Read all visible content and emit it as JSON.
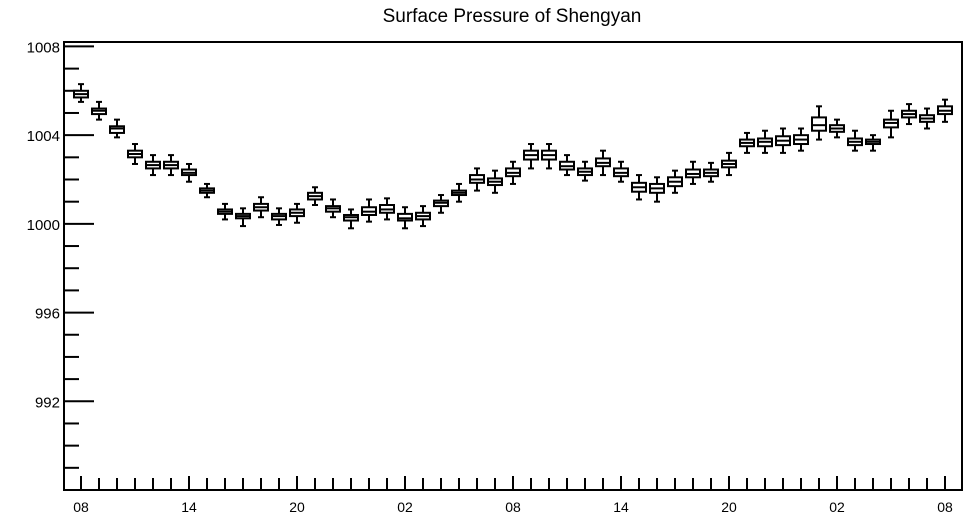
{
  "chart_data": {
    "type": "box",
    "title": "Surface Pressure of Shengyan",
    "xlabel": "",
    "ylabel": "",
    "ylim": [
      988,
      1008.2
    ],
    "y_tick_values": [
      992,
      996,
      1000,
      1004,
      1008
    ],
    "y_tick_labels": [
      "992",
      "996",
      "1000",
      "1004",
      "1008"
    ],
    "x_tick_labels": [
      "08",
      "14",
      "20",
      "02",
      "08",
      "14",
      "20",
      "02",
      "08"
    ],
    "x_tick_step": 6,
    "x_index_range": [
      0,
      48
    ],
    "grid": false,
    "boxes": [
      {
        "index": 0,
        "whisker_low": 1005.5,
        "q1": 1005.7,
        "median": 1005.85,
        "q3": 1006.0,
        "whisker_high": 1006.3
      },
      {
        "index": 1,
        "whisker_low": 1004.7,
        "q1": 1004.95,
        "median": 1005.1,
        "q3": 1005.2,
        "whisker_high": 1005.5
      },
      {
        "index": 2,
        "whisker_low": 1003.9,
        "q1": 1004.1,
        "median": 1004.3,
        "q3": 1004.4,
        "whisker_high": 1004.7
      },
      {
        "index": 3,
        "whisker_low": 1002.7,
        "q1": 1003.0,
        "median": 1003.15,
        "q3": 1003.3,
        "whisker_high": 1003.6
      },
      {
        "index": 4,
        "whisker_low": 1002.2,
        "q1": 1002.5,
        "median": 1002.65,
        "q3": 1002.8,
        "whisker_high": 1003.1
      },
      {
        "index": 5,
        "whisker_low": 1002.2,
        "q1": 1002.5,
        "median": 1002.65,
        "q3": 1002.8,
        "whisker_high": 1003.1
      },
      {
        "index": 6,
        "whisker_low": 1001.9,
        "q1": 1002.2,
        "median": 1002.3,
        "q3": 1002.45,
        "whisker_high": 1002.7
      },
      {
        "index": 7,
        "whisker_low": 1001.2,
        "q1": 1001.4,
        "median": 1001.5,
        "q3": 1001.6,
        "whisker_high": 1001.8
      },
      {
        "index": 8,
        "whisker_low": 1000.2,
        "q1": 1000.45,
        "median": 1000.55,
        "q3": 1000.65,
        "whisker_high": 1000.9
      },
      {
        "index": 9,
        "whisker_low": 999.9,
        "q1": 1000.25,
        "median": 1000.35,
        "q3": 1000.45,
        "whisker_high": 1000.7
      },
      {
        "index": 10,
        "whisker_low": 1000.3,
        "q1": 1000.6,
        "median": 1000.75,
        "q3": 1000.9,
        "whisker_high": 1001.2
      },
      {
        "index": 11,
        "whisker_low": 999.95,
        "q1": 1000.2,
        "median": 1000.35,
        "q3": 1000.45,
        "whisker_high": 1000.7
      },
      {
        "index": 12,
        "whisker_low": 1000.05,
        "q1": 1000.35,
        "median": 1000.5,
        "q3": 1000.65,
        "whisker_high": 1000.9
      },
      {
        "index": 13,
        "whisker_low": 1000.85,
        "q1": 1001.1,
        "median": 1001.25,
        "q3": 1001.4,
        "whisker_high": 1001.65
      },
      {
        "index": 14,
        "whisker_low": 1000.3,
        "q1": 1000.55,
        "median": 1000.7,
        "q3": 1000.8,
        "whisker_high": 1001.1
      },
      {
        "index": 15,
        "whisker_low": 999.8,
        "q1": 1000.15,
        "median": 1000.3,
        "q3": 1000.4,
        "whisker_high": 1000.65
      },
      {
        "index": 16,
        "whisker_low": 1000.1,
        "q1": 1000.4,
        "median": 1000.55,
        "q3": 1000.75,
        "whisker_high": 1001.1
      },
      {
        "index": 17,
        "whisker_low": 1000.2,
        "q1": 1000.5,
        "median": 1000.65,
        "q3": 1000.85,
        "whisker_high": 1001.15
      },
      {
        "index": 18,
        "whisker_low": 999.8,
        "q1": 1000.15,
        "median": 1000.25,
        "q3": 1000.45,
        "whisker_high": 1000.75
      },
      {
        "index": 19,
        "whisker_low": 999.9,
        "q1": 1000.2,
        "median": 1000.35,
        "q3": 1000.5,
        "whisker_high": 1000.8
      },
      {
        "index": 20,
        "whisker_low": 1000.5,
        "q1": 1000.8,
        "median": 1000.95,
        "q3": 1001.05,
        "whisker_high": 1001.3
      },
      {
        "index": 21,
        "whisker_low": 1001.0,
        "q1": 1001.3,
        "median": 1001.4,
        "q3": 1001.5,
        "whisker_high": 1001.8
      },
      {
        "index": 22,
        "whisker_low": 1001.5,
        "q1": 1001.85,
        "median": 1002.0,
        "q3": 1002.2,
        "whisker_high": 1002.5
      },
      {
        "index": 23,
        "whisker_low": 1001.4,
        "q1": 1001.75,
        "median": 1001.9,
        "q3": 1002.05,
        "whisker_high": 1002.4
      },
      {
        "index": 24,
        "whisker_low": 1001.8,
        "q1": 1002.15,
        "median": 1002.3,
        "q3": 1002.5,
        "whisker_high": 1002.8
      },
      {
        "index": 25,
        "whisker_low": 1002.5,
        "q1": 1002.9,
        "median": 1003.1,
        "q3": 1003.3,
        "whisker_high": 1003.6
      },
      {
        "index": 26,
        "whisker_low": 1002.5,
        "q1": 1002.9,
        "median": 1003.1,
        "q3": 1003.3,
        "whisker_high": 1003.6
      },
      {
        "index": 27,
        "whisker_low": 1002.2,
        "q1": 1002.45,
        "median": 1002.6,
        "q3": 1002.8,
        "whisker_high": 1003.1
      },
      {
        "index": 28,
        "whisker_low": 1001.95,
        "q1": 1002.2,
        "median": 1002.35,
        "q3": 1002.5,
        "whisker_high": 1002.8
      },
      {
        "index": 29,
        "whisker_low": 1002.2,
        "q1": 1002.6,
        "median": 1002.75,
        "q3": 1002.95,
        "whisker_high": 1003.3
      },
      {
        "index": 30,
        "whisker_low": 1001.9,
        "q1": 1002.15,
        "median": 1002.3,
        "q3": 1002.5,
        "whisker_high": 1002.8
      },
      {
        "index": 31,
        "whisker_low": 1001.1,
        "q1": 1001.45,
        "median": 1001.65,
        "q3": 1001.85,
        "whisker_high": 1002.2
      },
      {
        "index": 32,
        "whisker_low": 1001.0,
        "q1": 1001.4,
        "median": 1001.6,
        "q3": 1001.8,
        "whisker_high": 1002.1
      },
      {
        "index": 33,
        "whisker_low": 1001.4,
        "q1": 1001.7,
        "median": 1001.9,
        "q3": 1002.1,
        "whisker_high": 1002.4
      },
      {
        "index": 34,
        "whisker_low": 1001.8,
        "q1": 1002.1,
        "median": 1002.25,
        "q3": 1002.45,
        "whisker_high": 1002.8
      },
      {
        "index": 35,
        "whisker_low": 1001.9,
        "q1": 1002.15,
        "median": 1002.3,
        "q3": 1002.45,
        "whisker_high": 1002.75
      },
      {
        "index": 36,
        "whisker_low": 1002.2,
        "q1": 1002.55,
        "median": 1002.7,
        "q3": 1002.85,
        "whisker_high": 1003.2
      },
      {
        "index": 37,
        "whisker_low": 1003.2,
        "q1": 1003.5,
        "median": 1003.65,
        "q3": 1003.8,
        "whisker_high": 1004.1
      },
      {
        "index": 38,
        "whisker_low": 1003.2,
        "q1": 1003.5,
        "median": 1003.7,
        "q3": 1003.85,
        "whisker_high": 1004.2
      },
      {
        "index": 39,
        "whisker_low": 1003.2,
        "q1": 1003.55,
        "median": 1003.75,
        "q3": 1003.95,
        "whisker_high": 1004.3
      },
      {
        "index": 40,
        "whisker_low": 1003.3,
        "q1": 1003.6,
        "median": 1003.8,
        "q3": 1004.0,
        "whisker_high": 1004.3
      },
      {
        "index": 41,
        "whisker_low": 1003.8,
        "q1": 1004.2,
        "median": 1004.45,
        "q3": 1004.8,
        "whisker_high": 1005.3
      },
      {
        "index": 42,
        "whisker_low": 1003.9,
        "q1": 1004.15,
        "median": 1004.3,
        "q3": 1004.45,
        "whisker_high": 1004.7
      },
      {
        "index": 43,
        "whisker_low": 1003.3,
        "q1": 1003.55,
        "median": 1003.7,
        "q3": 1003.85,
        "whisker_high": 1004.2
      },
      {
        "index": 44,
        "whisker_low": 1003.3,
        "q1": 1003.6,
        "median": 1003.7,
        "q3": 1003.8,
        "whisker_high": 1004.0
      },
      {
        "index": 45,
        "whisker_low": 1003.9,
        "q1": 1004.35,
        "median": 1004.55,
        "q3": 1004.7,
        "whisker_high": 1005.1
      },
      {
        "index": 46,
        "whisker_low": 1004.5,
        "q1": 1004.8,
        "median": 1004.95,
        "q3": 1005.1,
        "whisker_high": 1005.4
      },
      {
        "index": 47,
        "whisker_low": 1004.3,
        "q1": 1004.6,
        "median": 1004.75,
        "q3": 1004.9,
        "whisker_high": 1005.2
      },
      {
        "index": 48,
        "whisker_low": 1004.6,
        "q1": 1004.95,
        "median": 1005.1,
        "q3": 1005.3,
        "whisker_high": 1005.6
      }
    ]
  }
}
